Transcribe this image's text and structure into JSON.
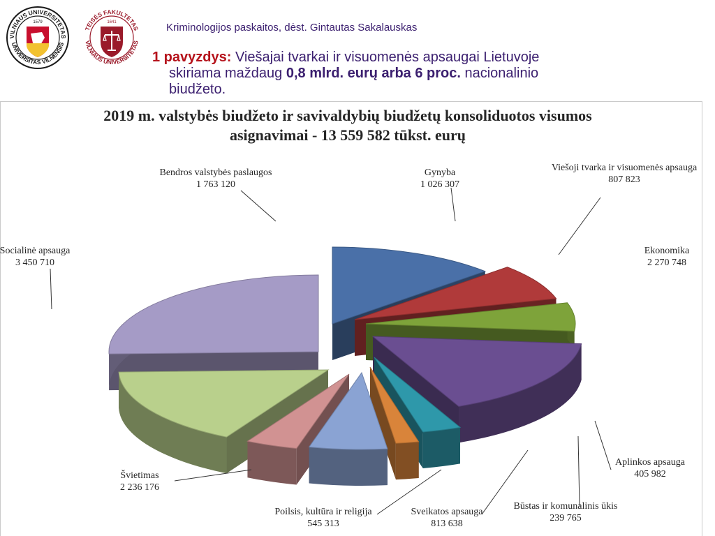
{
  "header": {
    "course": "Kriminologijos paskaitos, dėst. Gintautas Sakalauskas",
    "example_prefix": "1 pavyzdys:",
    "example_text_1": "Viešajai tvarkai ir visuomenės apsaugai Lietuvoje",
    "example_text_2a": "skiriama maždaug ",
    "example_bold": "0,8 mlrd. eurų arba 6 proc.",
    "example_text_2b": " nacionalinio",
    "example_text_3": "biudžeto."
  },
  "logos": {
    "vu": {
      "ring_top": "VILNIAUS UNIVERSITETAS",
      "ring_bottom": "UNIVERSITAS VILNENSIS",
      "year": "1579"
    },
    "tf": {
      "ring_top": "TEISĖS FAKULTETAS",
      "ring_bottom": "VILNIAUS UNIVERSITETAS",
      "year": "1641"
    }
  },
  "chart_data": {
    "type": "pie",
    "title_line1": "2019 m. valstybės biudžeto ir savivaldybių biudžetų konsoliduotos visumos",
    "title_line2": "asignavimai - 13 559 582 tūkst. eurų",
    "slices": [
      {
        "name": "Bendros valstybės paslaugos",
        "value": 1763120,
        "label": "1 763 120",
        "color": "#4a70a8"
      },
      {
        "name": "Gynyba",
        "value": 1026307,
        "label": "1 026 307",
        "color": "#b03a3a"
      },
      {
        "name": "Viešoji tvarka ir visuomenės apsauga",
        "value": 807823,
        "label": "807 823",
        "color": "#7ea33a"
      },
      {
        "name": "Ekonomika",
        "value": 2270748,
        "label": "2 270 748",
        "color": "#6a4e91"
      },
      {
        "name": "Aplinkos apsauga",
        "value": 405982,
        "label": "405 982",
        "color": "#2e98aa"
      },
      {
        "name": "Būstas ir komunalinis ūkis",
        "value": 239765,
        "label": "239 765",
        "color": "#d9843a"
      },
      {
        "name": "Sveikatos apsauga",
        "value": 813638,
        "label": "813 638",
        "color": "#8aa3d3"
      },
      {
        "name": "Poilsis, kultūra ir religija",
        "value": 545313,
        "label": "545 313",
        "color": "#d19292"
      },
      {
        "name": "Švietimas",
        "value": 2236176,
        "label": "2 236 176",
        "color": "#b9d08c"
      },
      {
        "name": "Socialinė apsauga",
        "value": 3450710,
        "label": "3 450 710",
        "color": "#a59bc6"
      }
    ]
  }
}
